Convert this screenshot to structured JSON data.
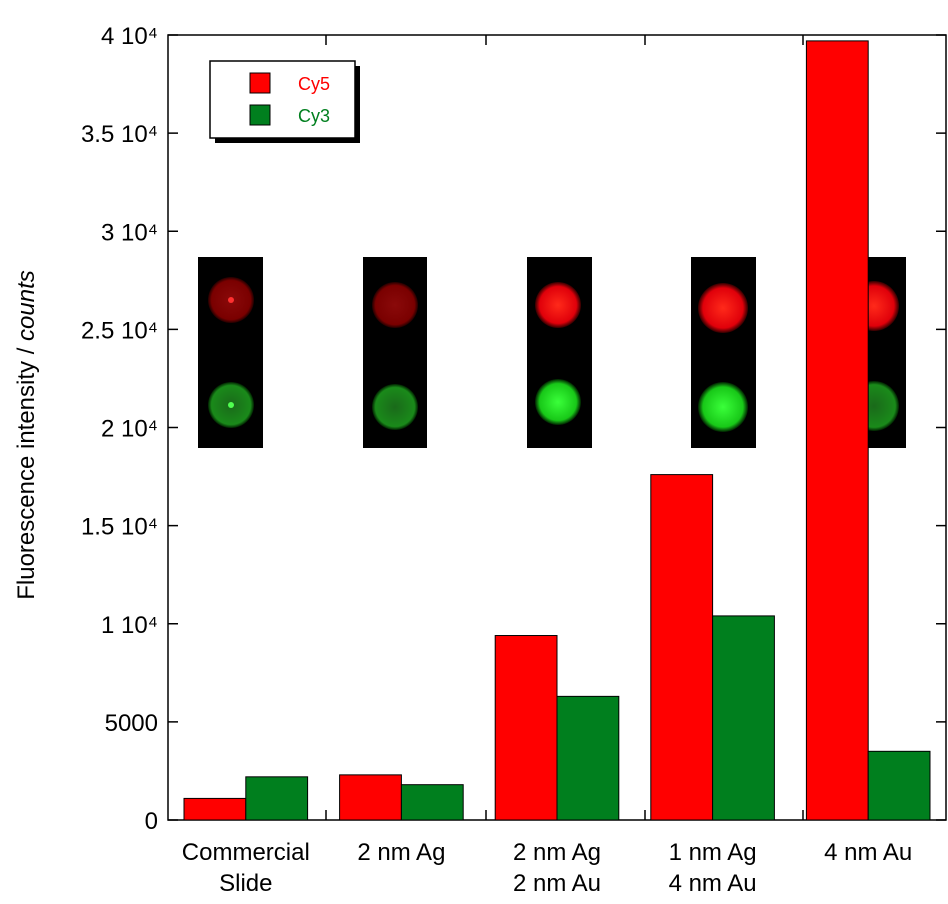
{
  "chart_data": {
    "type": "bar",
    "y_label": "Fluorescence intensity / ",
    "y_label_unit": "counts",
    "categories": [
      [
        "Commercial",
        "Slide"
      ],
      [
        "2 nm Ag"
      ],
      [
        "2 nm Ag",
        "2 nm Au"
      ],
      [
        "1 nm Ag",
        "4 nm Au"
      ],
      [
        "4 nm Au"
      ]
    ],
    "series": [
      {
        "name": "Cy5",
        "color": "#ff0000",
        "values": [
          1100,
          2300,
          9400,
          17600,
          39700
        ]
      },
      {
        "name": "Cy3",
        "color": "#007f1e",
        "values": [
          2200,
          1800,
          6300,
          10400,
          3500
        ]
      }
    ],
    "ylim": [
      0,
      40000
    ],
    "yticks": [
      0,
      5000,
      {
        "value": 10000,
        "label": "1 10⁴"
      },
      {
        "value": 15000,
        "label": "1.5 10⁴"
      },
      {
        "value": 20000,
        "label": "2 10⁴"
      },
      {
        "value": 25000,
        "label": "2.5 10⁴"
      },
      {
        "value": 30000,
        "label": "3 10⁴"
      },
      {
        "value": 35000,
        "label": "3.5 10⁴"
      },
      {
        "value": 40000,
        "label": "4 10⁴"
      }
    ],
    "legend": "top-left"
  }
}
